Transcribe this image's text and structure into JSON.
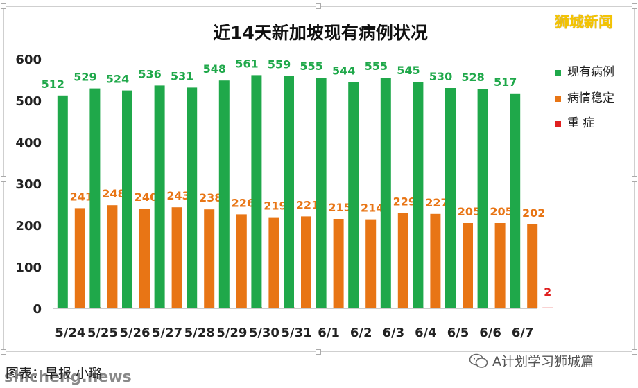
{
  "brand": "狮城新闻",
  "caption": "图表：早报 小璐",
  "watermark_left": "shicheng.news",
  "watermark_right": "A计划学习狮城篇",
  "icons": {
    "wechat": "wechat-icon"
  },
  "colors": {
    "green": "#1fa84a",
    "orange": "#e87515",
    "red": "#e02020"
  },
  "chart_data": {
    "type": "bar",
    "title": "近14天新加坡现有病例状况",
    "xlabel": "",
    "ylabel": "",
    "ylim": [
      0,
      600
    ],
    "yticks": [
      0,
      100,
      200,
      300,
      400,
      500,
      600
    ],
    "grid": false,
    "legend_position": "right",
    "categories": [
      "5/24",
      "5/25",
      "5/26",
      "5/27",
      "5/28",
      "5/29",
      "5/30",
      "5/31",
      "6/1",
      "6/2",
      "6/3",
      "6/4",
      "6/5",
      "6/6",
      "6/7"
    ],
    "series": [
      {
        "name": "现有病例",
        "color": "#1fa84a",
        "values": [
          512,
          529,
          524,
          536,
          531,
          548,
          561,
          559,
          555,
          544,
          555,
          545,
          530,
          528,
          517
        ]
      },
      {
        "name": "病情稳定",
        "color": "#e87515",
        "values": [
          241,
          248,
          240,
          243,
          238,
          226,
          219,
          221,
          215,
          214,
          229,
          227,
          205,
          205,
          202
        ]
      },
      {
        "name": "重 症",
        "color": "#e02020",
        "values": [
          3,
          2,
          2,
          2,
          3,
          3,
          3,
          2,
          2,
          2,
          2,
          2,
          2,
          2,
          2
        ]
      }
    ]
  }
}
